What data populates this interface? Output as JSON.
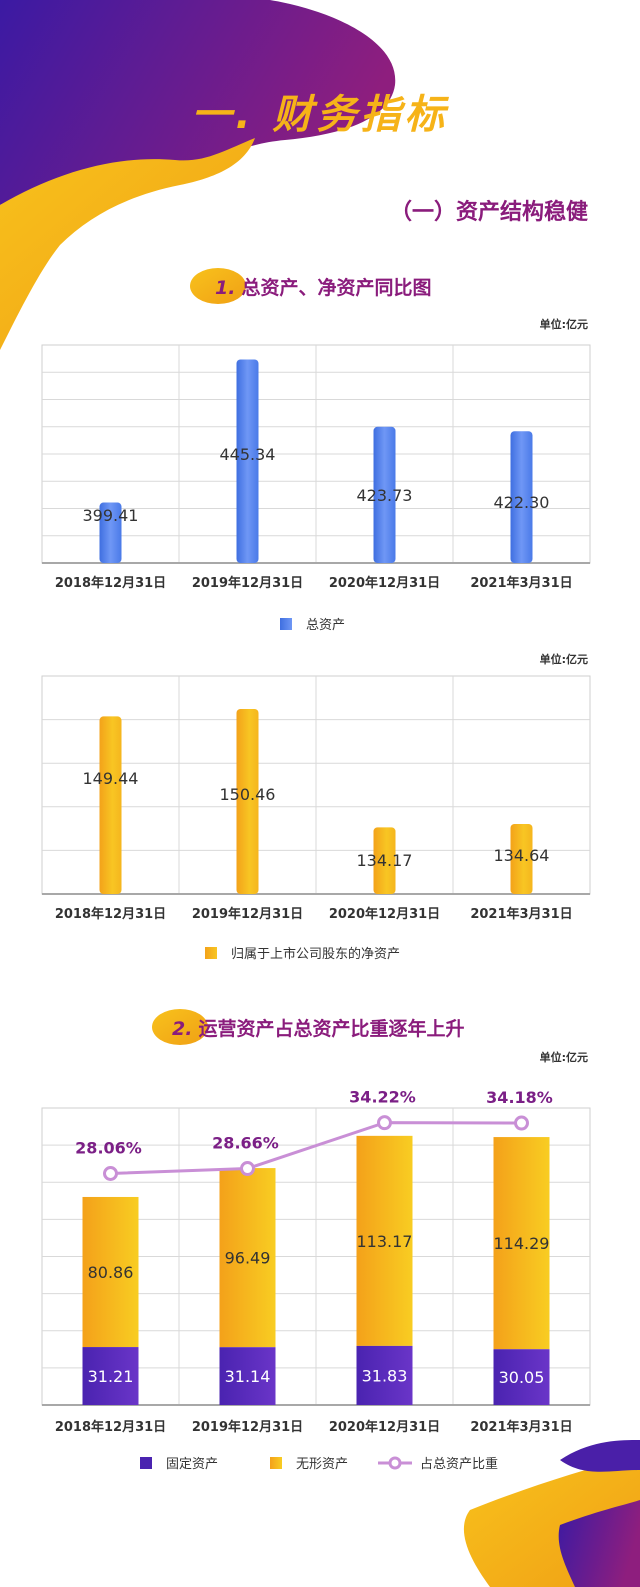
{
  "page": {
    "hero_title": "一. 财务指标",
    "section_title": "（一）资产结构稳健",
    "colors": {
      "purple": "#4a1fa8",
      "magenta": "#8a1c7c",
      "yellow": "#f6b318",
      "orange": "#e8921a",
      "blue": "#4f7be6",
      "line": "#c98fd6",
      "grid": "#cccccc"
    }
  },
  "sub1": {
    "number": "1.",
    "title": "总资产、净资产同比图"
  },
  "sub2": {
    "number": "2.",
    "title": "运营资产占总资产比重逐年上升"
  },
  "chart_data": [
    {
      "type": "bar",
      "unit": "单位:亿元",
      "categories": [
        "2018年12月31日",
        "2019年12月31日",
        "2020年12月31日",
        "2021年3月31日"
      ],
      "series": [
        {
          "name": "总资产",
          "values": [
            399.41,
            445.34,
            423.73,
            422.3
          ]
        }
      ],
      "ylim": [
        380,
        450
      ],
      "grid": true,
      "legend": "bottom"
    },
    {
      "type": "bar",
      "unit": "单位:亿元",
      "categories": [
        "2018年12月31日",
        "2019年12月31日",
        "2020年12月31日",
        "2021年3月31日"
      ],
      "series": [
        {
          "name": "归属于上市公司股东的净资产",
          "values": [
            149.44,
            150.46,
            134.17,
            134.64
          ]
        }
      ],
      "ylim": [
        125,
        155
      ],
      "grid": true,
      "legend": "bottom"
    },
    {
      "type": "bar",
      "stacked": true,
      "unit": "单位:亿元",
      "categories": [
        "2018年12月31日",
        "2019年12月31日",
        "2020年12月31日",
        "2021年3月31日"
      ],
      "series": [
        {
          "name": "固定资产",
          "values": [
            31.21,
            31.14,
            31.83,
            30.05
          ]
        },
        {
          "name": "无形资产",
          "values": [
            80.86,
            96.49,
            113.17,
            114.29
          ]
        },
        {
          "name": "占总资产比重",
          "type": "line",
          "values": [
            28.06,
            28.66,
            34.22,
            34.18
          ],
          "labels": [
            "28.06%",
            "28.66%",
            "34.22%",
            "34.18%"
          ]
        }
      ],
      "ylim": [
        0,
        160
      ],
      "line_ylim": [
        0,
        36
      ],
      "grid": true,
      "legend": "bottom"
    }
  ]
}
